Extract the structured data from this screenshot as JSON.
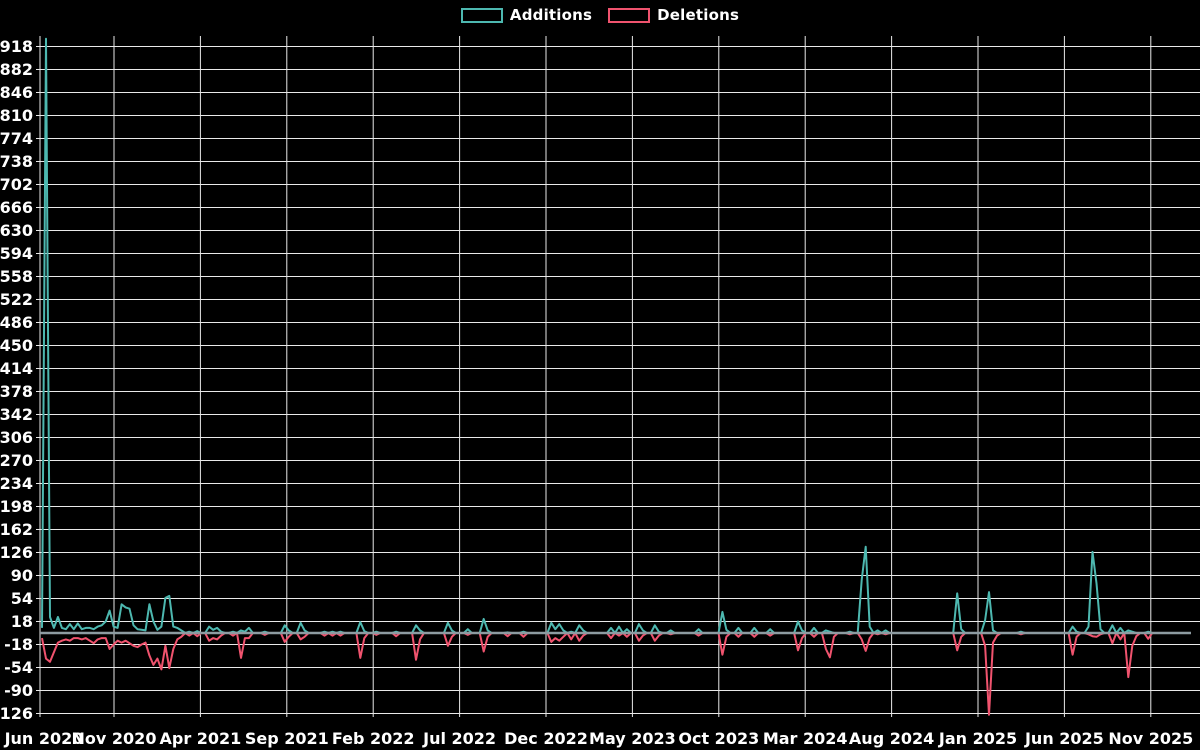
{
  "legend": {
    "items": [
      {
        "label": "Additions",
        "color": "#4db8b0"
      },
      {
        "label": "Deletions",
        "color": "#f0536e"
      }
    ]
  },
  "colors": {
    "background": "#000000",
    "grid": "#e9e9e9",
    "axis_text": "#ffffff",
    "zero_line": "#8d9ba1",
    "additions": "#4db8b0",
    "deletions": "#f0536e"
  },
  "chart_data": {
    "type": "line",
    "title": "",
    "xlabel": "",
    "ylabel": "",
    "legend_position": "top-center",
    "grid": true,
    "y_ticks": [
      918,
      882,
      846,
      810,
      774,
      738,
      702,
      666,
      630,
      594,
      558,
      522,
      486,
      450,
      414,
      378,
      342,
      306,
      270,
      234,
      198,
      162,
      126,
      90,
      54,
      18,
      -18,
      -54,
      -90,
      -126
    ],
    "ylim": [
      -134,
      934
    ],
    "x_tick_labels": [
      "Jun 2020",
      "Nov 2020",
      "Apr 2021",
      "Sep 2021",
      "Feb 2022",
      "Jul 2022",
      "Dec 2022",
      "May 2023",
      "Oct 2023",
      "Mar 2024",
      "Aug 2024",
      "Jan 2025",
      "Jun 2025",
      "Nov 2025"
    ],
    "x_unit": "week",
    "weeks_total": 289,
    "series": [
      {
        "name": "Additions",
        "color": "#4db8b0"
      },
      {
        "name": "Deletions",
        "color": "#f0536e"
      }
    ],
    "default_value": 0,
    "sparse_points": {
      "0": [
        8,
        -8
      ],
      "1": [
        930,
        -40
      ],
      "2": [
        25,
        -45
      ],
      "3": [
        8,
        -30
      ],
      "4": [
        25,
        -15
      ],
      "5": [
        8,
        -12
      ],
      "6": [
        6,
        -10
      ],
      "7": [
        14,
        -12
      ],
      "8": [
        6,
        -8
      ],
      "9": [
        15,
        -8
      ],
      "10": [
        6,
        -10
      ],
      "11": [
        8,
        -8
      ],
      "12": [
        8,
        -12
      ],
      "13": [
        6,
        -16
      ],
      "14": [
        10,
        -10
      ],
      "15": [
        12,
        -8
      ],
      "16": [
        18,
        -8
      ],
      "17": [
        35,
        -25
      ],
      "18": [
        10,
        -18
      ],
      "19": [
        8,
        -12
      ],
      "20": [
        45,
        -15
      ],
      "21": [
        40,
        -12
      ],
      "22": [
        38,
        -16
      ],
      "23": [
        12,
        -20
      ],
      "24": [
        6,
        -22
      ],
      "25": [
        5,
        -18
      ],
      "26": [
        4,
        -15
      ],
      "27": [
        45,
        -35
      ],
      "28": [
        18,
        -50
      ],
      "29": [
        5,
        -40
      ],
      "30": [
        10,
        -57
      ],
      "31": [
        55,
        -20
      ],
      "32": [
        58,
        -55
      ],
      "33": [
        10,
        -25
      ],
      "34": [
        8,
        -10
      ],
      "35": [
        4,
        -6
      ],
      "37": [
        2,
        -4
      ],
      "39": [
        3,
        -5
      ],
      "42": [
        10,
        -12
      ],
      "43": [
        5,
        -8
      ],
      "44": [
        8,
        -10
      ],
      "45": [
        2,
        -4
      ],
      "48": [
        2,
        -4
      ],
      "50": [
        4,
        -39
      ],
      "51": [
        2,
        -8
      ],
      "52": [
        8,
        -8
      ],
      "56": [
        2,
        -3
      ],
      "61": [
        12,
        -14
      ],
      "62": [
        4,
        -6
      ],
      "65": [
        16,
        -10
      ],
      "66": [
        4,
        -6
      ],
      "71": [
        2,
        -4
      ],
      "73": [
        2,
        -4
      ],
      "75": [
        2,
        -4
      ],
      "80": [
        17,
        -39
      ],
      "81": [
        3,
        -8
      ],
      "84": [
        2,
        -3
      ],
      "89": [
        2,
        -5
      ],
      "94": [
        12,
        -42
      ],
      "95": [
        4,
        -10
      ],
      "102": [
        16,
        -20
      ],
      "103": [
        4,
        -6
      ],
      "107": [
        6,
        -3
      ],
      "111": [
        22,
        -29
      ],
      "112": [
        4,
        -6
      ],
      "117": [
        1,
        -5
      ],
      "121": [
        2,
        -6
      ],
      "128": [
        16,
        -14
      ],
      "129": [
        6,
        -8
      ],
      "130": [
        14,
        -12
      ],
      "131": [
        4,
        -6
      ],
      "133": [
        2,
        -10
      ],
      "135": [
        12,
        -12
      ],
      "136": [
        4,
        -4
      ],
      "143": [
        8,
        -8
      ],
      "145": [
        10,
        -4
      ],
      "147": [
        6,
        -6
      ],
      "150": [
        14,
        -12
      ],
      "151": [
        4,
        -4
      ],
      "154": [
        12,
        -12
      ],
      "155": [
        2,
        -4
      ],
      "158": [
        4,
        -2
      ],
      "165": [
        6,
        -4
      ],
      "171": [
        33,
        -34
      ],
      "172": [
        5,
        -6
      ],
      "175": [
        8,
        -6
      ],
      "179": [
        8,
        -6
      ],
      "183": [
        6,
        -4
      ],
      "190": [
        18,
        -27
      ],
      "191": [
        4,
        -8
      ],
      "194": [
        8,
        -6
      ],
      "197": [
        4,
        -25
      ],
      "198": [
        2,
        -38
      ],
      "199": [
        0,
        -6
      ],
      "203": [
        2,
        -2
      ],
      "206": [
        83,
        -10
      ],
      "207": [
        135,
        -28
      ],
      "208": [
        10,
        -8
      ],
      "210": [
        4,
        -2
      ],
      "212": [
        4,
        -2
      ],
      "230": [
        62,
        -27
      ],
      "231": [
        6,
        -6
      ],
      "237": [
        20,
        -20
      ],
      "238": [
        64,
        -128
      ],
      "239": [
        4,
        -15
      ],
      "240": [
        0,
        -4
      ],
      "246": [
        2,
        -2
      ],
      "259": [
        10,
        -34
      ],
      "260": [
        2,
        -6
      ],
      "263": [
        10,
        -2
      ],
      "264": [
        127,
        -5
      ],
      "265": [
        78,
        -6
      ],
      "266": [
        6,
        -2
      ],
      "269": [
        12,
        -16
      ],
      "271": [
        8,
        -10
      ],
      "273": [
        4,
        -69
      ],
      "274": [
        2,
        -20
      ],
      "275": [
        0,
        -5
      ],
      "278": [
        2,
        -9
      ]
    }
  }
}
